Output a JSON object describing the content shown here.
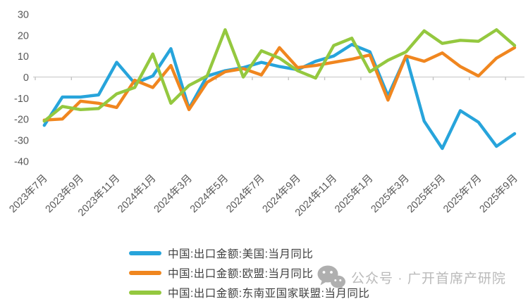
{
  "chart_data": {
    "type": "line",
    "x": [
      "2023年7月",
      "2023年8月",
      "2023年9月",
      "2023年10月",
      "2023年11月",
      "2023年12月",
      "2024年1月",
      "2024年2月",
      "2024年3月",
      "2024年4月",
      "2024年5月",
      "2024年6月",
      "2024年7月",
      "2024年8月",
      "2024年9月",
      "2024年10月",
      "2024年11月",
      "2024年12月",
      "2025年1月",
      "2025年2月",
      "2025年3月",
      "2025年4月",
      "2025年5月",
      "2025年6月",
      "2025年7月",
      "2025年8月",
      "2025年9月"
    ],
    "x_tick_labels": [
      "2023年7月",
      "2023年9月",
      "2023年11月",
      "2024年1月",
      "2024年3月",
      "2024年5月",
      "2024年7月",
      "2024年9月",
      "2024年11月",
      "2025年1月",
      "2025年3月",
      "2025年5月",
      "2025年7月",
      "2025年9月"
    ],
    "series": [
      {
        "name": "中国:出口金额:美国:当月同比",
        "color": "#27A4DB",
        "values": [
          -23,
          -9.5,
          -9.5,
          -8.5,
          7,
          -3,
          0.5,
          13.5,
          -15,
          0.5,
          3,
          4.5,
          7,
          5,
          3.5,
          7.5,
          10,
          15.5,
          12,
          -9,
          10,
          -21,
          -34,
          -16,
          -21.5,
          -33,
          -27
        ]
      },
      {
        "name": "中国:出口金额:欧盟:当月同比",
        "color": "#F0861F",
        "values": [
          -20.5,
          -20,
          -11.5,
          -12.5,
          -14.5,
          -1.5,
          -5,
          5.5,
          -15.5,
          -2.5,
          2.5,
          4,
          1,
          14,
          4.5,
          5.5,
          7,
          8.5,
          10.5,
          -11,
          10,
          7.5,
          11.5,
          5,
          0.5,
          9,
          14
        ]
      },
      {
        "name": "中国:出口金额:东南亚国家联盟:当月同比",
        "color": "#94C83F",
        "values": [
          -21,
          -14,
          -15.5,
          -15,
          -8,
          -5,
          11,
          -12.5,
          -4,
          0.5,
          22.5,
          0,
          12.5,
          9,
          3,
          -0.5,
          15,
          18.5,
          2.5,
          8,
          12,
          22,
          16,
          17.5,
          17,
          22.5,
          15
        ]
      }
    ],
    "ylim": [
      -40,
      30
    ],
    "y_ticks": [
      30,
      20,
      10,
      0,
      -10,
      -20,
      -30,
      -40
    ],
    "grid": "zero-line-only",
    "legend_position": "bottom-left",
    "axis_label_color": "#595959",
    "zero_line_color": "#D6D6D6"
  },
  "watermark": {
    "text": "公众号 · 广开首席产研院",
    "icon": "wechat"
  }
}
